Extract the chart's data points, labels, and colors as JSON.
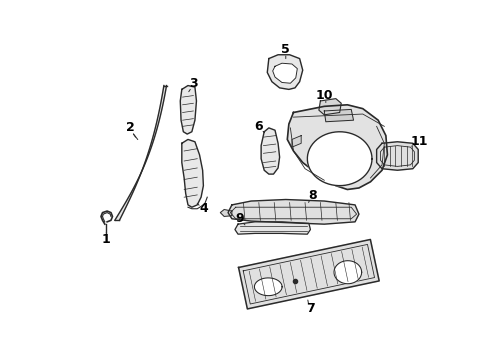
{
  "background_color": "#ffffff",
  "line_color": "#2a2a2a",
  "line_width": 1.0,
  "label_fontsize": 9,
  "figsize": [
    4.9,
    3.6
  ],
  "dpi": 100
}
